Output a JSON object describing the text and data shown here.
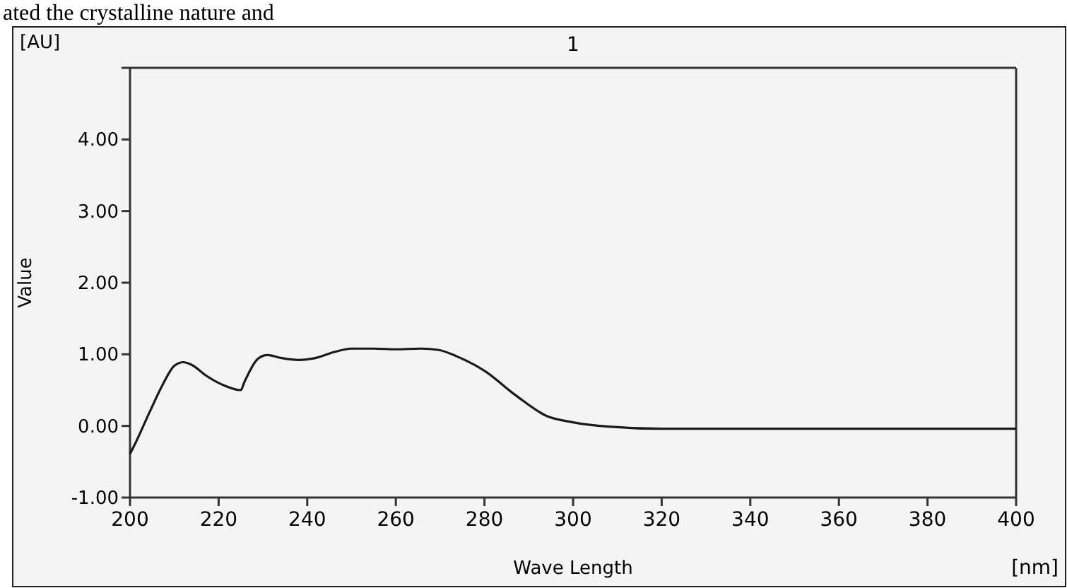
{
  "chart_data": {
    "type": "line",
    "title": "1",
    "xlabel": "Wave Length",
    "ylabel": "Value",
    "annotations": [
      "ated the crystalline nature and",
      "[AU]",
      "[nm]"
    ],
    "x": [
      200,
      201.3,
      204.4,
      207.4,
      210,
      212,
      214,
      217,
      220.7,
      225,
      225.8,
      228.9,
      231,
      234,
      238,
      242,
      246,
      250,
      255,
      260,
      265.6,
      269.7,
      273.8,
      280,
      287,
      294,
      300,
      308,
      320,
      340,
      360,
      380,
      393,
      400
    ],
    "series": [
      {
        "color": "#1a1a1a",
        "values": [
          -0.39,
          -0.23,
          0.19,
          0.58,
          0.84,
          0.89,
          0.85,
          0.71,
          0.58,
          0.5,
          0.61,
          0.94,
          0.99,
          0.95,
          0.92,
          0.95,
          1.03,
          1.08,
          1.08,
          1.07,
          1.08,
          1.06,
          0.97,
          0.77,
          0.43,
          0.14,
          0.05,
          -0.01,
          -0.04,
          -0.04,
          -0.04,
          -0.04,
          -0.04,
          -0.04
        ]
      }
    ],
    "xlim": [
      200,
      400
    ],
    "xticks": [
      200,
      220,
      240,
      260,
      280,
      300,
      320,
      340,
      360,
      380,
      400
    ],
    "ylim": [
      -1,
      5
    ],
    "yticks": [
      {
        "value": -1,
        "label": "-1.00"
      },
      {
        "value": 0,
        "label": "0.00"
      },
      {
        "value": 1,
        "label": "1.00"
      },
      {
        "value": 2,
        "label": "2.00"
      },
      {
        "value": 3,
        "label": "3.00"
      },
      {
        "value": 4,
        "label": "4.00"
      }
    ],
    "grid": false,
    "marker": "none",
    "line_style": "solid"
  }
}
